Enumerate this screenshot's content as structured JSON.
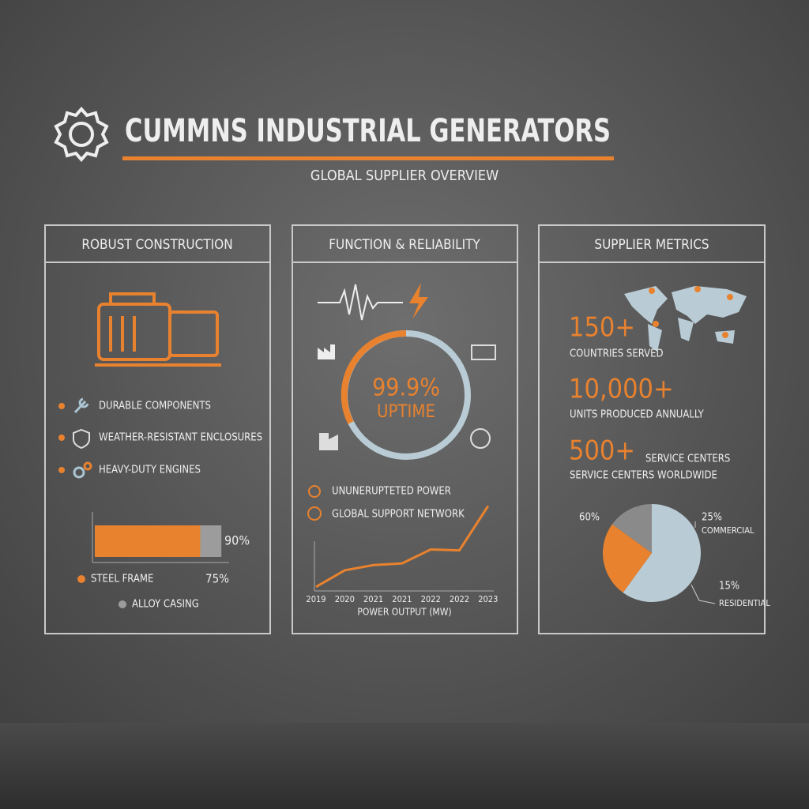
{
  "header": {
    "title": "CUMMNS INDUSTRIAL GENERATORS",
    "subtitle": "GLOBAL SUPPLIER OVERVIEW"
  },
  "panels": [
    {
      "title": "ROBUST CONSTRUCTION",
      "features": [
        "DURABLE COMPONENTS",
        "WEATHER-RESISTANT ENCLOSURES",
        "HEAVY-DUTY ENGINES"
      ],
      "chart": {
        "type": "bar",
        "categories": [
          "STEEL FRAME",
          "ALLOY CASING"
        ],
        "values": [
          75,
          90
        ],
        "value_labels": [
          "75%",
          "90%"
        ],
        "colors": [
          "#e8822f",
          "#9c9c9c"
        ],
        "xlim": [
          0,
          100
        ]
      }
    },
    {
      "title": "FUNCTION & RELIABILITY",
      "gauge": {
        "value_label": "99.9%",
        "label": "UPTIME"
      },
      "features": [
        "UNUNERUPTETED POWER",
        "GLOBAL SUPPORT NETWORK"
      ],
      "chart": {
        "type": "line",
        "categories": [
          "2019",
          "2020",
          "2021",
          "2021",
          "2022",
          "2022",
          "2023"
        ],
        "values": [
          2,
          21,
          27,
          29,
          45,
          44,
          95
        ],
        "color": "#e8822f",
        "ylim": [
          0,
          100
        ],
        "xlabel": "POWER OUTPUT (MW)"
      }
    },
    {
      "title": "SUPPLIER METRICS",
      "stats": [
        {
          "value": "150+",
          "label": "COUNTRIES SERVED"
        },
        {
          "value": "10,000+",
          "label": "UNITS PRODUCED ANNUALLY"
        },
        {
          "value": "500+",
          "label": "SERVICE CENTERS",
          "note": "SERVICE CENTERS WORLDWIDE"
        }
      ],
      "chart": {
        "type": "pie",
        "categories": [
          null,
          "COMMERCIAL",
          "RESIDENTIAL"
        ],
        "values": [
          60,
          25,
          15
        ],
        "value_labels": [
          "60%",
          "25%",
          "15%"
        ],
        "colors": [
          "#b9ccd6",
          "#e8822f",
          "#8a8a8a"
        ]
      }
    }
  ]
}
